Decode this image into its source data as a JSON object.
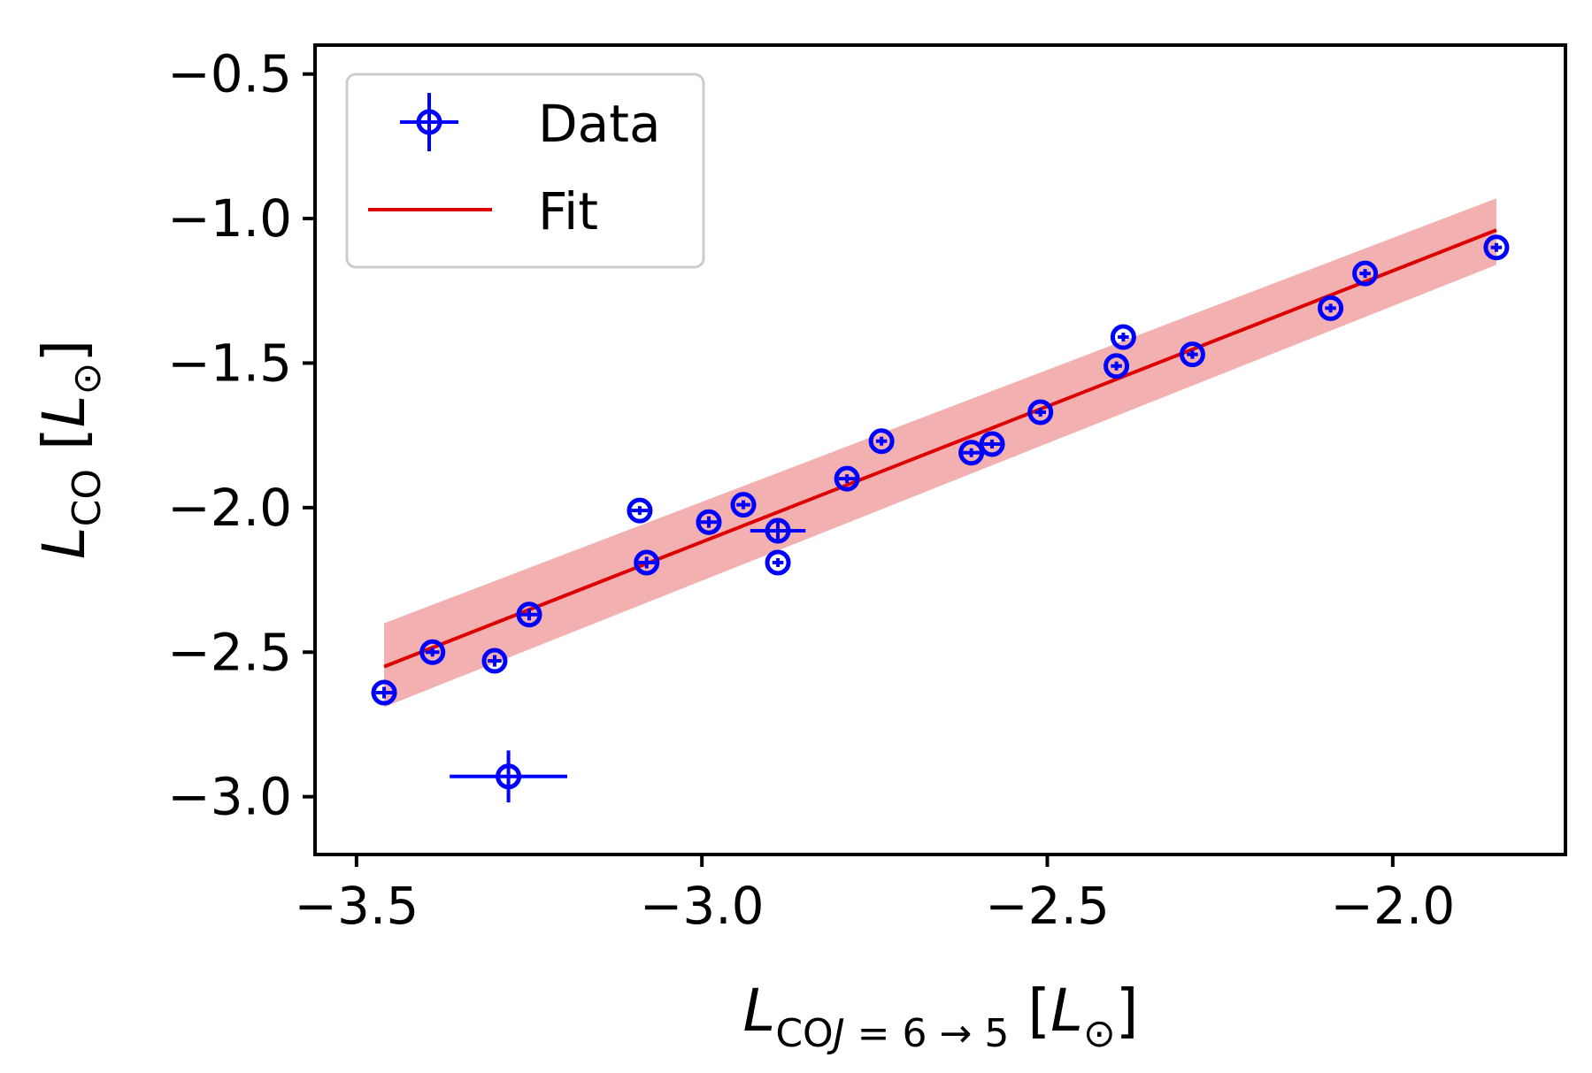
{
  "chart_data": {
    "type": "scatter",
    "xlabel": "L_{CO J=6→5} [L_⊙]",
    "ylabel": "L_{CO} [L_⊙]",
    "xlim": [
      -3.56,
      -1.75
    ],
    "ylim": [
      -3.2,
      -0.4
    ],
    "xticks": [
      -3.5,
      -3.0,
      -2.5,
      -2.0
    ],
    "yticks": [
      -3.0,
      -2.5,
      -2.0,
      -1.5,
      -1.0,
      -0.5
    ],
    "xtick_labels": [
      "−3.5",
      "−3.0",
      "−2.5",
      "−2.0"
    ],
    "ytick_labels": [
      "−3.0",
      "−2.5",
      "−2.0",
      "−1.5",
      "−1.0",
      "−0.5"
    ],
    "legend": {
      "position": "upper-left",
      "entries": [
        "Data",
        "Fit"
      ]
    },
    "grid": false,
    "series": [
      {
        "name": "Data",
        "kind": "errorbar",
        "color": "#0000ff",
        "points": [
          {
            "x": -3.46,
            "y": -2.64,
            "xerr": 0.012,
            "yerr": 0.02
          },
          {
            "x": -3.39,
            "y": -2.5,
            "xerr": 0.01,
            "yerr": 0.015
          },
          {
            "x": -3.3,
            "y": -2.53,
            "xerr": 0.01,
            "yerr": 0.02
          },
          {
            "x": -3.28,
            "y": -2.93,
            "xerr": 0.085,
            "yerr": 0.09
          },
          {
            "x": -3.25,
            "y": -2.37,
            "xerr": 0.012,
            "yerr": 0.02
          },
          {
            "x": -3.09,
            "y": -2.01,
            "xerr": 0.012,
            "yerr": 0.015
          },
          {
            "x": -3.08,
            "y": -2.19,
            "xerr": 0.012,
            "yerr": 0.02
          },
          {
            "x": -2.99,
            "y": -2.05,
            "xerr": 0.012,
            "yerr": 0.02
          },
          {
            "x": -2.94,
            "y": -1.99,
            "xerr": 0.01,
            "yerr": 0.015
          },
          {
            "x": -2.89,
            "y": -2.08,
            "xerr": 0.04,
            "yerr": 0.04
          },
          {
            "x": -2.89,
            "y": -2.19,
            "xerr": 0.008,
            "yerr": 0.015
          },
          {
            "x": -2.79,
            "y": -1.9,
            "xerr": 0.012,
            "yerr": 0.015
          },
          {
            "x": -2.74,
            "y": -1.77,
            "xerr": 0.008,
            "yerr": 0.015
          },
          {
            "x": -2.61,
            "y": -1.81,
            "xerr": 0.012,
            "yerr": 0.015
          },
          {
            "x": -2.58,
            "y": -1.78,
            "xerr": 0.012,
            "yerr": 0.015
          },
          {
            "x": -2.51,
            "y": -1.67,
            "xerr": 0.008,
            "yerr": 0.015
          },
          {
            "x": -2.4,
            "y": -1.51,
            "xerr": 0.008,
            "yerr": 0.015
          },
          {
            "x": -2.39,
            "y": -1.41,
            "xerr": 0.008,
            "yerr": 0.015
          },
          {
            "x": -2.29,
            "y": -1.47,
            "xerr": 0.008,
            "yerr": 0.015
          },
          {
            "x": -2.09,
            "y": -1.31,
            "xerr": 0.008,
            "yerr": 0.015
          },
          {
            "x": -2.04,
            "y": -1.19,
            "xerr": 0.008,
            "yerr": 0.012
          },
          {
            "x": -1.85,
            "y": -1.1,
            "xerr": 0.008,
            "yerr": 0.012
          }
        ]
      },
      {
        "name": "Fit",
        "kind": "line",
        "color": "#dd0000",
        "x": [
          -3.46,
          -1.85
        ],
        "y": [
          -2.55,
          -1.04
        ],
        "band": {
          "color": "#f2b0b0",
          "x": [
            -3.46,
            -1.85
          ],
          "upper": [
            -2.4,
            -0.93
          ],
          "lower": [
            -2.69,
            -1.16
          ]
        }
      }
    ]
  }
}
